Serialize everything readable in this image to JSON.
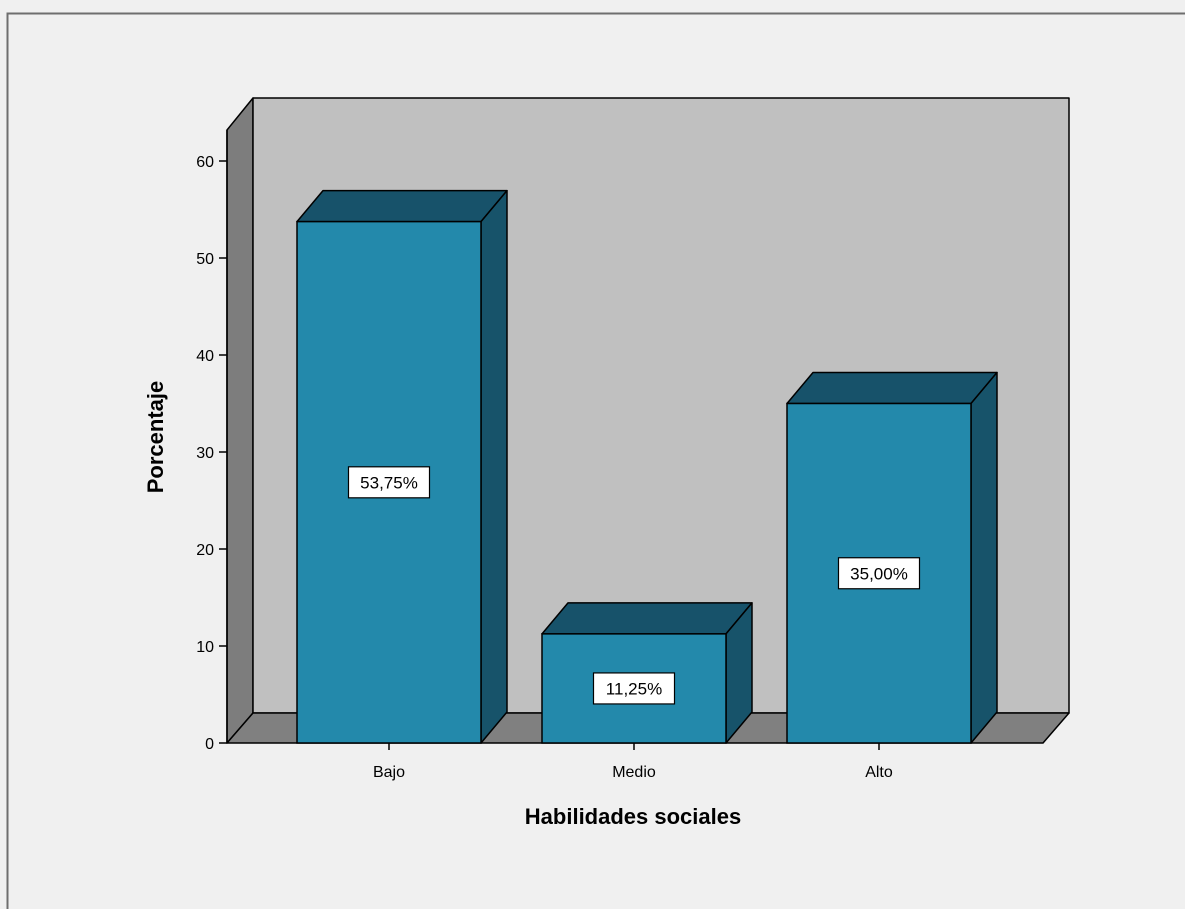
{
  "chart_data": {
    "type": "bar",
    "categories": [
      "Bajo",
      "Medio",
      "Alto"
    ],
    "values": [
      53.75,
      11.25,
      35.0
    ],
    "data_labels": [
      "53,75%",
      "11,25%",
      "35,00%"
    ],
    "title": "",
    "xlabel": "Habilidades sociales",
    "ylabel": "Porcentaje",
    "ylim": [
      0,
      60
    ],
    "yticks": [
      0,
      10,
      20,
      30,
      40,
      50,
      60
    ],
    "grid": false,
    "style": "3d",
    "colors": {
      "background": "#f0f0f0",
      "wall": "#c0c0c0",
      "wall_side": "#7d7d7d",
      "floor": "#808080",
      "bar_front": "#2389ab",
      "bar_top": "#17526a",
      "bar_side": "#17536a",
      "outline": "#000000",
      "label_box": "#ffffff"
    }
  }
}
